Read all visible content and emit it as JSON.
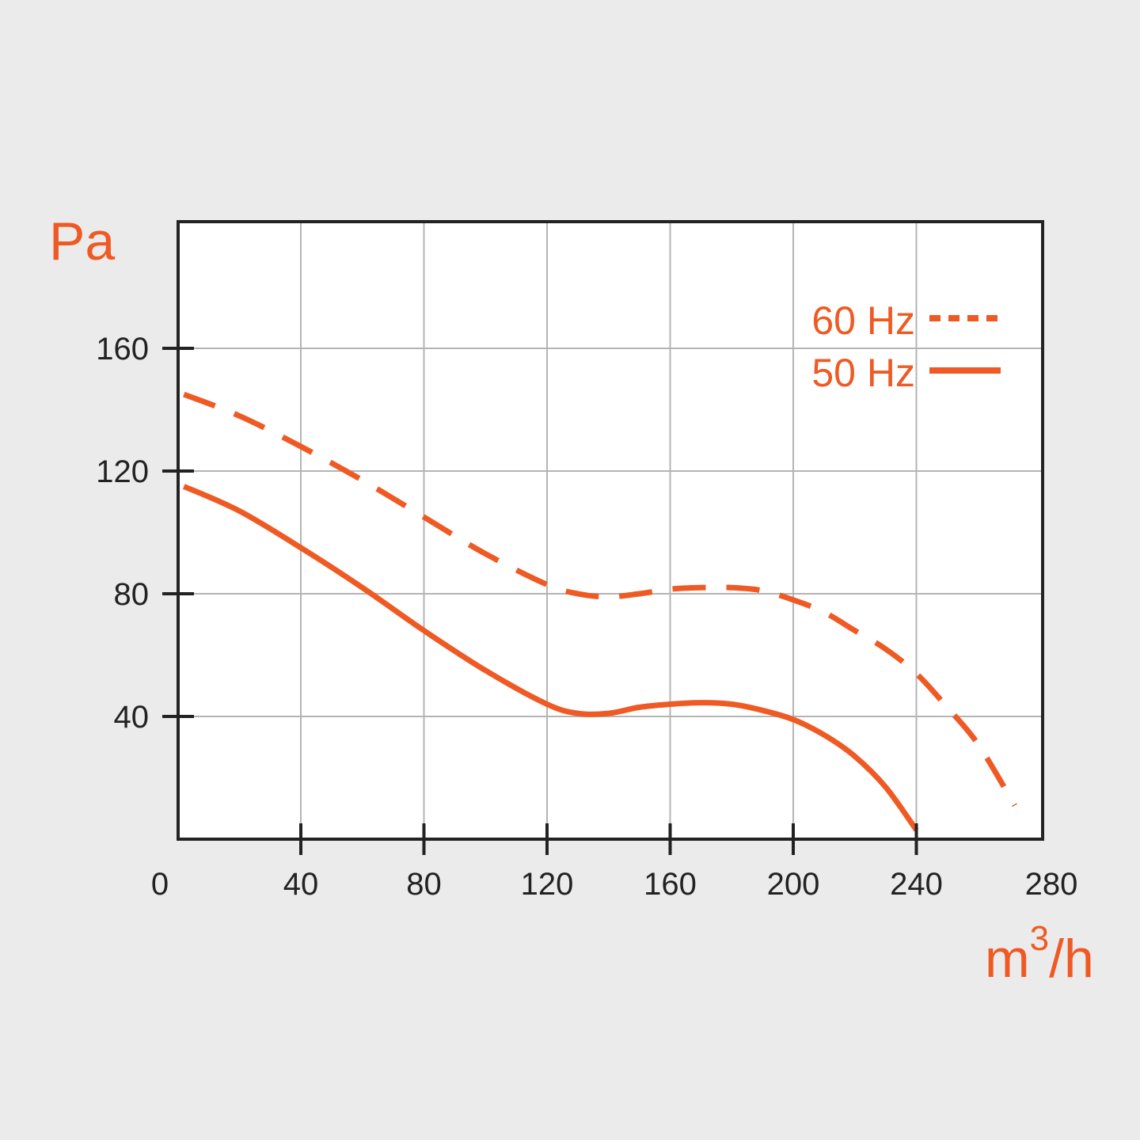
{
  "chart_data": {
    "type": "line",
    "ylabel": "Pa",
    "xlabel_base": "m",
    "xlabel_sup": "3",
    "xlabel_tail": "/h",
    "xlim": [
      0,
      280
    ],
    "ylim": [
      0,
      200
    ],
    "x_ticks": [
      "0",
      "40",
      "80",
      "120",
      "160",
      "200",
      "240",
      "280"
    ],
    "y_ticks": [
      "40",
      "80",
      "120",
      "160"
    ],
    "grid": true,
    "legend_position": "top-right",
    "colors": {
      "accent": "#ef5a24",
      "frame": "#222222",
      "grid": "#b4b4b4",
      "plot_bg": "#ffffff",
      "page_bg": "#ebebeb"
    },
    "series": [
      {
        "name": "60 Hz",
        "style": "dashed",
        "x": [
          2,
          20,
          40,
          60,
          80,
          100,
          120,
          130,
          140,
          150,
          160,
          170,
          180,
          190,
          200,
          210,
          220,
          230,
          240,
          250,
          260,
          272
        ],
        "y": [
          145,
          138,
          128,
          117,
          105,
          93,
          83,
          80,
          79,
          80,
          81.5,
          82,
          82,
          81,
          78,
          74,
          68,
          62,
          54,
          43,
          31,
          11
        ]
      },
      {
        "name": "50 Hz",
        "style": "solid",
        "x": [
          2,
          20,
          40,
          60,
          80,
          100,
          120,
          130,
          140,
          150,
          160,
          170,
          180,
          190,
          200,
          210,
          220,
          230,
          240
        ],
        "y": [
          115,
          107,
          95,
          82,
          68,
          55,
          44,
          41,
          41,
          43,
          44,
          44.5,
          44,
          42,
          39,
          34,
          27,
          17,
          3
        ]
      }
    ]
  }
}
